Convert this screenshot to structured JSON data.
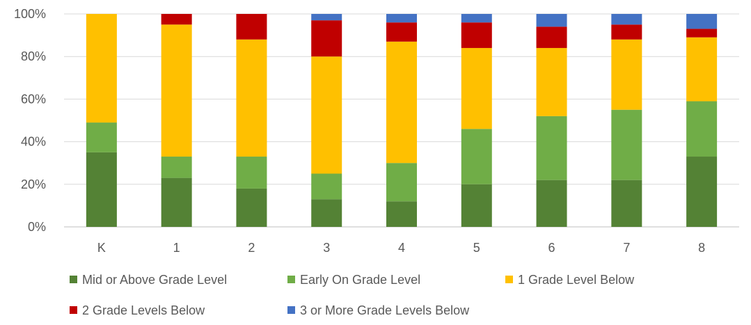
{
  "chart_data": {
    "type": "bar",
    "stacked": true,
    "percent_stacked": true,
    "categories": [
      "K",
      "1",
      "2",
      "3",
      "4",
      "5",
      "6",
      "7",
      "8"
    ],
    "series": [
      {
        "name": "Mid or Above Grade Level",
        "color": "#548235",
        "values": [
          35,
          23,
          18,
          13,
          12,
          20,
          22,
          22,
          33
        ]
      },
      {
        "name": "Early On Grade Level",
        "color": "#70AD47",
        "values": [
          14,
          10,
          15,
          12,
          18,
          26,
          30,
          33,
          26
        ]
      },
      {
        "name": "1 Grade Level Below",
        "color": "#FFC000",
        "values": [
          51,
          62,
          55,
          55,
          57,
          38,
          32,
          33,
          30
        ]
      },
      {
        "name": "2 Grade Levels Below",
        "color": "#C00000",
        "values": [
          0,
          5,
          12,
          17,
          9,
          12,
          10,
          7,
          4
        ]
      },
      {
        "name": "3 or More Grade Levels Below",
        "color": "#4472C4",
        "values": [
          0,
          0,
          0,
          3,
          4,
          4,
          6,
          5,
          7
        ]
      }
    ],
    "y_ticks": [
      "0%",
      "20%",
      "40%",
      "60%",
      "80%",
      "100%"
    ],
    "ylim": [
      0,
      100
    ],
    "grid": true,
    "legend_position": "bottom"
  }
}
